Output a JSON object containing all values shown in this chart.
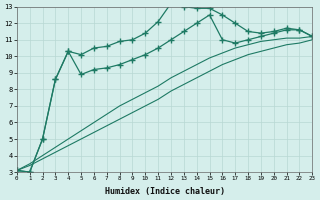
{
  "xlabel": "Humidex (Indice chaleur)",
  "x": [
    0,
    1,
    2,
    3,
    4,
    5,
    6,
    7,
    8,
    9,
    10,
    11,
    12,
    13,
    14,
    15,
    16,
    17,
    18,
    19,
    20,
    21,
    22,
    23
  ],
  "line1": [
    3.1,
    3.0,
    5.0,
    8.6,
    10.3,
    10.1,
    10.5,
    10.6,
    10.9,
    11.0,
    11.4,
    12.1,
    13.2,
    13.0,
    12.9,
    12.9,
    12.5,
    12.0,
    11.5,
    11.4,
    11.5,
    11.7,
    11.6,
    11.2
  ],
  "line2": [
    3.1,
    3.0,
    5.0,
    8.6,
    10.3,
    8.9,
    9.2,
    9.3,
    9.5,
    9.8,
    10.1,
    10.5,
    11.0,
    11.5,
    12.0,
    12.5,
    11.0,
    10.8,
    11.0,
    11.2,
    11.4,
    11.6,
    11.6,
    11.2
  ],
  "line3": [
    3.1,
    3.5,
    4.0,
    4.5,
    5.0,
    5.5,
    6.0,
    6.5,
    7.0,
    7.4,
    7.8,
    8.2,
    8.7,
    9.1,
    9.5,
    9.9,
    10.2,
    10.5,
    10.7,
    10.9,
    11.0,
    11.1,
    11.1,
    11.2
  ],
  "line4": [
    3.1,
    3.4,
    3.8,
    4.2,
    4.6,
    5.0,
    5.4,
    5.8,
    6.2,
    6.6,
    7.0,
    7.4,
    7.9,
    8.3,
    8.7,
    9.1,
    9.5,
    9.8,
    10.1,
    10.3,
    10.5,
    10.7,
    10.8,
    11.0
  ],
  "bg_color": "#d5eeeb",
  "grid_color": "#b8d8d4",
  "line_color": "#1e7a64",
  "marker_color": "#1e7a64",
  "ylim": [
    3,
    13
  ],
  "xlim": [
    0,
    23
  ]
}
